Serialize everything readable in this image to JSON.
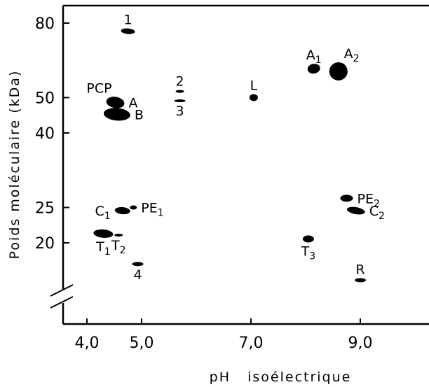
{
  "chart_data": {
    "type": "scatter",
    "title": "",
    "xlabel": "pH   isoélectrique",
    "ylabel": "Poids moléculaire (kDa)",
    "x_ticks": [
      {
        "value": 4.0,
        "label": "4,0"
      },
      {
        "value": 5.0,
        "label": "5,0"
      },
      {
        "value": 7.0,
        "label": "7,0"
      },
      {
        "value": 9.0,
        "label": "9,0"
      }
    ],
    "y_ticks": [
      {
        "value": 80,
        "label": "80"
      },
      {
        "value": 50,
        "label": "50"
      },
      {
        "value": 40,
        "label": "40"
      },
      {
        "value": 25,
        "label": "25"
      },
      {
        "value": 20,
        "label": "20"
      }
    ],
    "y_scale": "log",
    "y_axis_break": true,
    "grid": false,
    "legend": "none",
    "color": "#000000",
    "points": [
      {
        "label": "1",
        "sub": "",
        "pI": 4.75,
        "mw": 76,
        "rx": 10,
        "ry": 4,
        "rot": 5,
        "lbl": "above"
      },
      {
        "label": "A",
        "sub": "1",
        "pI": 8.15,
        "mw": 60,
        "rx": 9,
        "ry": 7,
        "rot": -10,
        "lbl": "above"
      },
      {
        "label": "A",
        "sub": "2",
        "pI": 8.6,
        "mw": 59,
        "rx": 13,
        "ry": 13,
        "rot": -30,
        "lbl": "above-right"
      },
      {
        "label": "2",
        "sub": "",
        "pI": 5.7,
        "mw": 52,
        "rx": 6,
        "ry": 2,
        "rot": 0,
        "lbl": "above"
      },
      {
        "label": "3",
        "sub": "",
        "pI": 5.7,
        "mw": 49,
        "rx": 8,
        "ry": 2,
        "rot": 0,
        "lbl": "below"
      },
      {
        "label": "L",
        "sub": "",
        "pI": 7.05,
        "mw": 50,
        "rx": 6,
        "ry": 5,
        "rot": 0,
        "lbl": "above"
      },
      {
        "label": "A",
        "sub": "",
        "pI": 4.52,
        "mw": 48.5,
        "rx": 13,
        "ry": 8,
        "rot": 10,
        "lbl": "right"
      },
      {
        "label": "B",
        "sub": "",
        "pI": 4.55,
        "mw": 45,
        "rx": 19,
        "ry": 9,
        "rot": 5,
        "lbl": "right"
      },
      {
        "label": "C",
        "sub": "1",
        "pI": 4.65,
        "mw": 24.5,
        "rx": 11,
        "ry": 5,
        "rot": 5,
        "lbl": "left"
      },
      {
        "label": "PE",
        "sub": "1",
        "pI": 4.85,
        "mw": 25,
        "rx": 5,
        "ry": 3,
        "rot": 0,
        "lbl": "right"
      },
      {
        "label": "PE",
        "sub": "2",
        "pI": 8.75,
        "mw": 26.5,
        "rx": 9,
        "ry": 5,
        "rot": 0,
        "lbl": "right"
      },
      {
        "label": "C",
        "sub": "2",
        "pI": 8.92,
        "mw": 24.5,
        "rx": 13,
        "ry": 5,
        "rot": 10,
        "lbl": "right"
      },
      {
        "label": "T",
        "sub": "1",
        "pI": 4.3,
        "mw": 21.2,
        "rx": 14,
        "ry": 6,
        "rot": 5,
        "lbl": "below"
      },
      {
        "label": "T",
        "sub": "2",
        "pI": 4.58,
        "mw": 21,
        "rx": 6,
        "ry": 2,
        "rot": 0,
        "lbl": "below"
      },
      {
        "label": "T",
        "sub": "3",
        "pI": 8.05,
        "mw": 20.5,
        "rx": 8,
        "ry": 5,
        "rot": 0,
        "lbl": "below"
      },
      {
        "label": "4",
        "sub": "",
        "pI": 4.93,
        "mw": 17.5,
        "rx": 8,
        "ry": 3,
        "rot": 0,
        "lbl": "below"
      },
      {
        "label": "R",
        "sub": "",
        "pI": 9.0,
        "mw": 15.8,
        "rx": 8,
        "ry": 3,
        "rot": 0,
        "lbl": "above"
      }
    ],
    "marker_labels": [
      {
        "label": "PCP",
        "near": "A"
      }
    ]
  }
}
